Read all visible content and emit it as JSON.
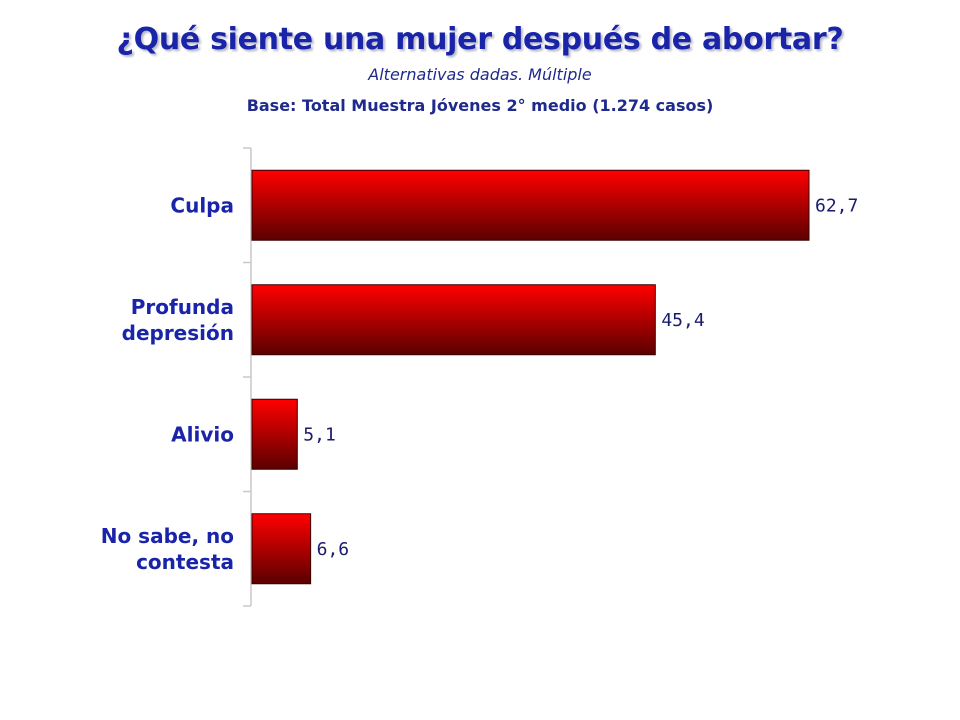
{
  "header": {
    "title": "¿Qué siente una mujer después de abortar?",
    "subtitle": "Alternativas dadas. Múltiple",
    "base": "Base: Total Muestra Jóvenes 2° medio (1.274 casos)"
  },
  "chart_data": {
    "type": "bar",
    "orientation": "horizontal",
    "title": "¿Qué siente una mujer después de abortar?",
    "subtitle": "Alternativas dadas. Múltiple",
    "categories": [
      [
        "Culpa"
      ],
      [
        "Profunda",
        "depresión"
      ],
      [
        "Alivio"
      ],
      [
        "No sabe, no",
        "contesta"
      ]
    ],
    "values": [
      62.7,
      45.4,
      5.1,
      6.6
    ],
    "value_labels": [
      "62,7",
      "45,4",
      "5,1",
      "6,6"
    ],
    "xlim": [
      0,
      70
    ],
    "grid": false,
    "legend": "none",
    "colors": {
      "bar_top": "#ff0000",
      "bar_bottom": "#5a0000",
      "bar_edge": "#3a0000",
      "axis": "#c8c8c8"
    }
  }
}
